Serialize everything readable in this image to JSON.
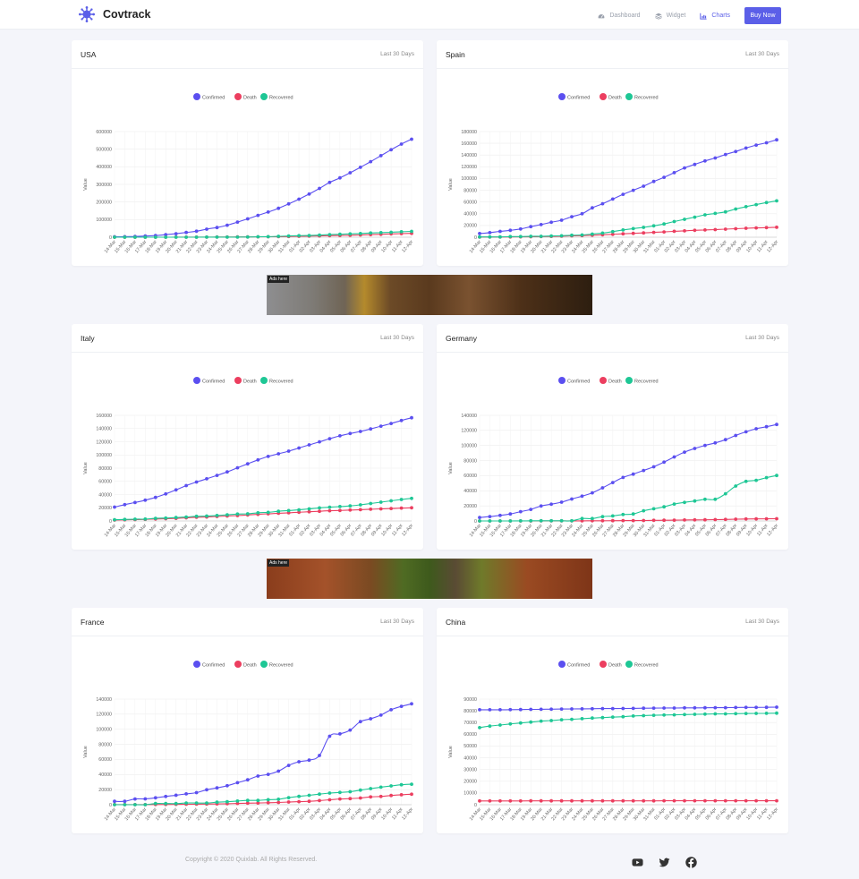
{
  "brand": {
    "name": "Covtrack"
  },
  "nav": {
    "items": [
      {
        "label": "Dashboard",
        "icon": "dashboard-icon"
      },
      {
        "label": "Widget",
        "icon": "layers-icon"
      },
      {
        "label": "Charts",
        "icon": "chart-icon",
        "active": true
      }
    ],
    "buy_label": "Buy Now"
  },
  "colors": {
    "accent": "#5b5fe8",
    "confirmed": "#5b4ff0",
    "death": "#ec3e5f",
    "recovered": "#1ec795"
  },
  "legend": [
    "Confirmed",
    "Death",
    "Recovered"
  ],
  "ads": [
    {
      "label": "Ads here"
    },
    {
      "label": "Ads here"
    }
  ],
  "footer": {
    "copyright": "Copyright © 2020 Quixlab. All Rights Reserved.",
    "social": [
      "youtube-icon",
      "twitter-icon",
      "facebook-icon"
    ]
  },
  "cards": [
    {
      "title": "USA",
      "subtitle": "Last 30 Days"
    },
    {
      "title": "Spain",
      "subtitle": "Last 30 Days"
    },
    {
      "title": "Italy",
      "subtitle": "Last 30 Days"
    },
    {
      "title": "Germany",
      "subtitle": "Last 30 Days"
    },
    {
      "title": "France",
      "subtitle": "Last 30 Days"
    },
    {
      "title": "China",
      "subtitle": "Last 30 Days"
    }
  ],
  "chart_data": [
    {
      "type": "line",
      "title": "USA",
      "ylabel": "Value",
      "ylim": [
        0,
        600000
      ],
      "yticks": [
        0,
        100000,
        200000,
        300000,
        400000,
        500000,
        600000
      ],
      "x": [
        "14-Mar",
        "15-Mar",
        "16-Mar",
        "17-Mar",
        "18-Mar",
        "19-Mar",
        "20-Mar",
        "21-Mar",
        "22-Mar",
        "23-Mar",
        "24-Mar",
        "25-Mar",
        "26-Mar",
        "27-Mar",
        "28-Mar",
        "29-Mar",
        "30-Mar",
        "31-Mar",
        "01-Apr",
        "02-Apr",
        "03-Apr",
        "04-Apr",
        "05-Apr",
        "06-Apr",
        "07-Apr",
        "08-Apr",
        "09-Apr",
        "10-Apr",
        "11-Apr",
        "12-Apr"
      ],
      "series": [
        {
          "name": "Confirmed",
          "values": [
            2500,
            3000,
            4200,
            6500,
            9400,
            14000,
            19600,
            26700,
            34000,
            46000,
            55000,
            68000,
            86000,
            104000,
            124000,
            143000,
            164000,
            189000,
            216000,
            245000,
            277000,
            311000,
            337000,
            366000,
            397000,
            429000,
            463000,
            497000,
            529000,
            557000
          ]
        },
        {
          "name": "Death",
          "values": [
            50,
            60,
            75,
            105,
            150,
            210,
            260,
            340,
            450,
            600,
            780,
            1050,
            1300,
            1700,
            2200,
            2500,
            3000,
            4000,
            5100,
            6000,
            7200,
            8500,
            9600,
            10800,
            12800,
            14700,
            16500,
            18600,
            20500,
            22000
          ]
        },
        {
          "name": "Recovered",
          "values": [
            20,
            20,
            30,
            50,
            100,
            120,
            150,
            180,
            200,
            300,
            400,
            500,
            700,
            1000,
            2600,
            3000,
            5000,
            7000,
            8800,
            9700,
            12000,
            15000,
            17000,
            19000,
            21000,
            24000,
            26000,
            28000,
            31000,
            33000
          ]
        }
      ]
    },
    {
      "type": "line",
      "title": "Spain",
      "ylabel": "Value",
      "ylim": [
        0,
        180000
      ],
      "yticks": [
        0,
        20000,
        40000,
        60000,
        80000,
        100000,
        120000,
        140000,
        160000,
        180000
      ],
      "x": [
        "14-Mar",
        "15-Mar",
        "16-Mar",
        "17-Mar",
        "18-Mar",
        "19-Mar",
        "20-Mar",
        "21-Mar",
        "22-Mar",
        "23-Mar",
        "24-Mar",
        "25-Mar",
        "26-Mar",
        "27-Mar",
        "28-Mar",
        "29-Mar",
        "30-Mar",
        "31-Mar",
        "01-Apr",
        "02-Apr",
        "03-Apr",
        "04-Apr",
        "05-Apr",
        "06-Apr",
        "07-Apr",
        "08-Apr",
        "09-Apr",
        "10-Apr",
        "11-Apr",
        "12-Apr"
      ],
      "series": [
        {
          "name": "Confirmed",
          "values": [
            6300,
            7800,
            9900,
            11700,
            14000,
            18000,
            21500,
            25500,
            29000,
            35000,
            40000,
            50000,
            57000,
            65000,
            73000,
            80000,
            87000,
            95000,
            102000,
            110000,
            118000,
            124000,
            130000,
            135000,
            141000,
            146000,
            152000,
            157000,
            161000,
            166000
          ]
        },
        {
          "name": "Death",
          "values": [
            190,
            290,
            340,
            530,
            620,
            830,
            1000,
            1300,
            1700,
            2300,
            2800,
            3400,
            4100,
            4900,
            5800,
            6500,
            7300,
            8200,
            9000,
            10000,
            10900,
            11700,
            12400,
            13000,
            13800,
            14500,
            15200,
            15800,
            16300,
            17000
          ]
        },
        {
          "name": "Recovered",
          "values": [
            500,
            500,
            530,
            1000,
            1100,
            1600,
            1600,
            2100,
            2500,
            3300,
            3800,
            5400,
            7000,
            9400,
            12300,
            14700,
            16800,
            19300,
            22600,
            26700,
            30500,
            34200,
            38100,
            40500,
            43200,
            48000,
            52000,
            55600,
            59000,
            62000
          ]
        }
      ]
    },
    {
      "type": "line",
      "title": "Italy",
      "ylabel": "Value",
      "ylim": [
        0,
        160000
      ],
      "yticks": [
        0,
        20000,
        40000,
        60000,
        80000,
        100000,
        120000,
        140000,
        160000
      ],
      "x": [
        "14-Mar",
        "15-Mar",
        "16-Mar",
        "17-Mar",
        "18-Mar",
        "19-Mar",
        "20-Mar",
        "21-Mar",
        "22-Mar",
        "23-Mar",
        "24-Mar",
        "25-Mar",
        "26-Mar",
        "27-Mar",
        "28-Mar",
        "29-Mar",
        "30-Mar",
        "31-Mar",
        "01-Apr",
        "02-Apr",
        "03-Apr",
        "04-Apr",
        "05-Apr",
        "06-Apr",
        "07-Apr",
        "08-Apr",
        "09-Apr",
        "10-Apr",
        "11-Apr",
        "12-Apr"
      ],
      "series": [
        {
          "name": "Confirmed",
          "values": [
            21000,
            24700,
            27900,
            31500,
            35700,
            41000,
            47000,
            53500,
            59000,
            63900,
            69000,
            74300,
            80500,
            86500,
            92500,
            97700,
            101700,
            105800,
            110500,
            115200,
            119800,
            124600,
            128900,
            132500,
            135600,
            139400,
            143600,
            147600,
            152200,
            156300
          ]
        },
        {
          "name": "Death",
          "values": [
            1400,
            1800,
            2100,
            2500,
            3000,
            3400,
            4000,
            4800,
            5500,
            6000,
            6800,
            7500,
            8200,
            9100,
            10000,
            10800,
            11600,
            12400,
            13200,
            13900,
            14700,
            15400,
            15900,
            16500,
            17100,
            17700,
            18300,
            18800,
            19500,
            19900
          ]
        },
        {
          "name": "Recovered",
          "values": [
            1900,
            2300,
            2700,
            2900,
            4000,
            4400,
            5100,
            6000,
            7000,
            7400,
            8300,
            9400,
            10400,
            10900,
            12400,
            13000,
            14600,
            15700,
            16800,
            18300,
            19800,
            20900,
            21800,
            22800,
            24400,
            26500,
            28500,
            30500,
            32500,
            34200
          ]
        }
      ]
    },
    {
      "type": "line",
      "title": "Germany",
      "ylabel": "Value",
      "ylim": [
        0,
        140000
      ],
      "yticks": [
        0,
        20000,
        40000,
        60000,
        80000,
        100000,
        120000,
        140000
      ],
      "x": [
        "14-Mar",
        "15-Mar",
        "16-Mar",
        "17-Mar",
        "18-Mar",
        "19-Mar",
        "20-Mar",
        "21-Mar",
        "22-Mar",
        "23-Mar",
        "24-Mar",
        "25-Mar",
        "26-Mar",
        "27-Mar",
        "28-Mar",
        "29-Mar",
        "30-Mar",
        "31-Mar",
        "01-Apr",
        "02-Apr",
        "03-Apr",
        "04-Apr",
        "05-Apr",
        "06-Apr",
        "07-Apr",
        "08-Apr",
        "09-Apr",
        "10-Apr",
        "11-Apr",
        "12-Apr"
      ],
      "series": [
        {
          "name": "Confirmed",
          "values": [
            4600,
            5800,
            7300,
            9300,
            12300,
            15300,
            19800,
            22200,
            24900,
            29100,
            32900,
            37300,
            43900,
            50900,
            57700,
            62100,
            66900,
            71800,
            77900,
            84800,
            91200,
            96100,
            100100,
            103400,
            107700,
            113300,
            118200,
            122200,
            124900,
            127900
          ]
        },
        {
          "name": "Death",
          "values": [
            9,
            11,
            17,
            24,
            28,
            44,
            67,
            84,
            94,
            123,
            157,
            206,
            267,
            342,
            433,
            533,
            645,
            775,
            920,
            1100,
            1275,
            1440,
            1580,
            1810,
            2010,
            2350,
            2610,
            2770,
            2870,
            2970
          ]
        },
        {
          "name": "Recovered",
          "values": [
            46,
            46,
            46,
            46,
            105,
            180,
            180,
            180,
            180,
            180,
            3240,
            3240,
            5670,
            6660,
            8500,
            9210,
            13500,
            16100,
            18700,
            22400,
            24600,
            26400,
            28700,
            28700,
            36100,
            46300,
            52400,
            53900,
            57400,
            60300
          ]
        }
      ]
    },
    {
      "type": "line",
      "title": "France",
      "ylabel": "Value",
      "ylim": [
        0,
        140000
      ],
      "yticks": [
        0,
        20000,
        40000,
        60000,
        80000,
        100000,
        120000,
        140000
      ],
      "x": [
        "14-Mar",
        "15-Mar",
        "16-Mar",
        "17-Mar",
        "18-Mar",
        "19-Mar",
        "20-Mar",
        "21-Mar",
        "22-Mar",
        "23-Mar",
        "24-Mar",
        "25-Mar",
        "26-Mar",
        "27-Mar",
        "28-Mar",
        "29-Mar",
        "30-Mar",
        "31-Mar",
        "01-Apr",
        "02-Apr",
        "03-Apr",
        "04-Apr",
        "05-Apr",
        "06-Apr",
        "07-Apr",
        "08-Apr",
        "09-Apr",
        "10-Apr",
        "11-Apr",
        "12-Apr"
      ],
      "series": [
        {
          "name": "Confirmed",
          "values": [
            4500,
            4500,
            7600,
            7700,
            9100,
            10900,
            12600,
            14300,
            16000,
            19800,
            22300,
            25200,
            29200,
            33000,
            38000,
            40200,
            44500,
            52100,
            57000,
            59100,
            65200,
            90800,
            93800,
            98900,
            110100,
            113900,
            118800,
            125900,
            130400,
            133700
          ]
        },
        {
          "name": "Death",
          "values": [
            91,
            91,
            149,
            149,
            264,
            372,
            450,
            562,
            674,
            860,
            1100,
            1330,
            1700,
            1990,
            2310,
            2610,
            3020,
            3520,
            4030,
            4500,
            5400,
            6500,
            7560,
            8080,
            8900,
            10340,
            10890,
            12230,
            13210,
            13850
          ]
        },
        {
          "name": "Recovered",
          "values": [
            12,
            12,
            12,
            12,
            1590,
            1590,
            1590,
            2200,
            2200,
            2200,
            3300,
            3900,
            4900,
            5700,
            5700,
            6600,
            7200,
            9400,
            11000,
            12400,
            14000,
            15400,
            16200,
            17200,
            19300,
            21300,
            23200,
            24900,
            26400,
            27200
          ]
        }
      ]
    },
    {
      "type": "line",
      "title": "China",
      "ylabel": "Value",
      "ylim": [
        0,
        90000
      ],
      "yticks": [
        0,
        10000,
        20000,
        30000,
        40000,
        50000,
        60000,
        70000,
        80000,
        90000
      ],
      "x": [
        "14-Mar",
        "15-Mar",
        "16-Mar",
        "17-Mar",
        "18-Mar",
        "19-Mar",
        "20-Mar",
        "21-Mar",
        "22-Mar",
        "23-Mar",
        "24-Mar",
        "25-Mar",
        "26-Mar",
        "27-Mar",
        "28-Mar",
        "29-Mar",
        "30-Mar",
        "31-Mar",
        "01-Apr",
        "02-Apr",
        "03-Apr",
        "04-Apr",
        "05-Apr",
        "06-Apr",
        "07-Apr",
        "08-Apr",
        "09-Apr",
        "10-Apr",
        "11-Apr",
        "12-Apr"
      ],
      "series": [
        {
          "name": "Confirmed",
          "values": [
            80900,
            80900,
            80900,
            81000,
            81100,
            81200,
            81300,
            81400,
            81500,
            81600,
            81700,
            81800,
            81900,
            81900,
            82000,
            82100,
            82200,
            82300,
            82400,
            82400,
            82500,
            82500,
            82600,
            82700,
            82700,
            82800,
            82900,
            82900,
            83000,
            83100
          ]
        },
        {
          "name": "Recovered",
          "values": [
            65700,
            67000,
            67900,
            68800,
            69600,
            70400,
            71200,
            71700,
            72400,
            72800,
            73300,
            73800,
            74200,
            74700,
            75000,
            75600,
            75900,
            76200,
            76400,
            76600,
            76800,
            77000,
            77200,
            77400,
            77400,
            77600,
            77700,
            77800,
            77900,
            78000
          ]
        },
        {
          "name": "Death",
          "values": [
            3180,
            3200,
            3210,
            3230,
            3240,
            3250,
            3250,
            3260,
            3270,
            3270,
            3280,
            3290,
            3290,
            3300,
            3300,
            3310,
            3310,
            3310,
            3320,
            3320,
            3330,
            3330,
            3330,
            3330,
            3330,
            3340,
            3340,
            3340,
            3340,
            3340
          ]
        }
      ]
    }
  ]
}
